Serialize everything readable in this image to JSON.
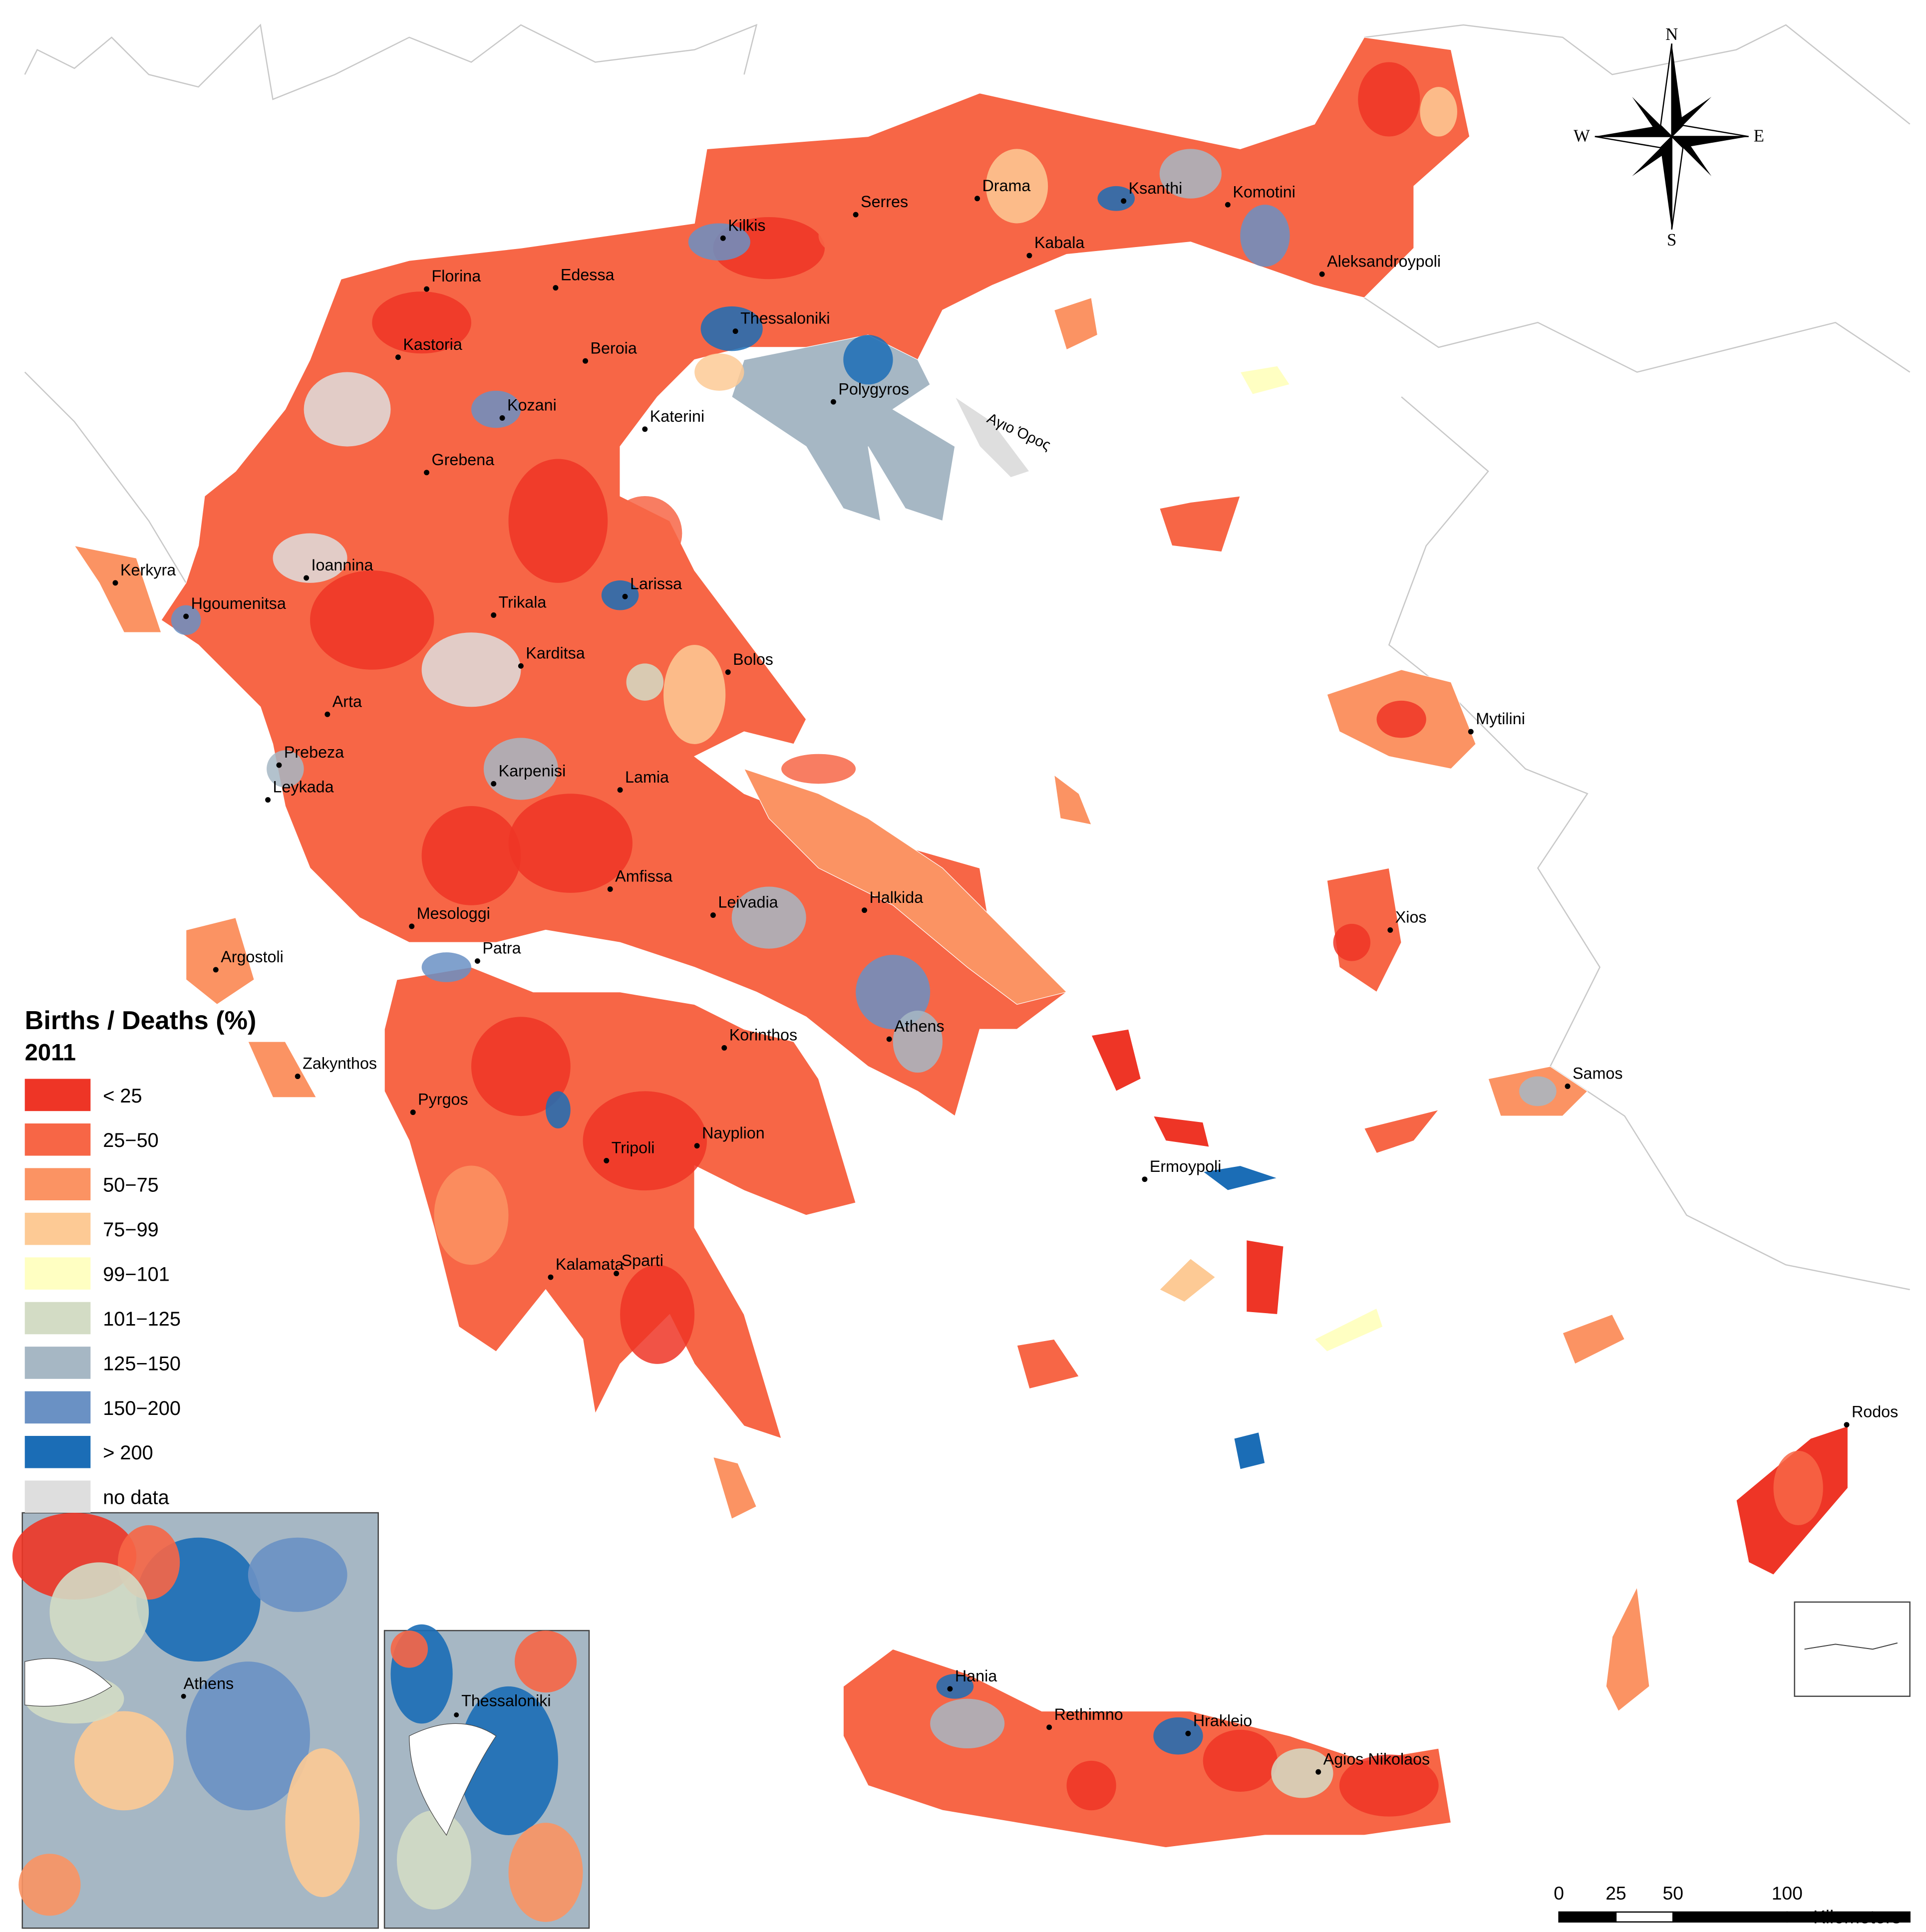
{
  "legend": {
    "title": "Births / Deaths (%)",
    "subtitle": "2011",
    "items": [
      {
        "label": "< 25",
        "color": "#ee3526"
      },
      {
        "label": "25−50",
        "color": "#f76646"
      },
      {
        "label": "50−75",
        "color": "#fb9363"
      },
      {
        "label": "75−99",
        "color": "#fdca95"
      },
      {
        "label": "99−101",
        "color": "#ffffc2"
      },
      {
        "label": "101−125",
        "color": "#d3dcc5"
      },
      {
        "label": "125−150",
        "color": "#a6b7c4"
      },
      {
        "label": "150−200",
        "color": "#6a91c4"
      },
      {
        "label": "> 200",
        "color": "#1b6db6"
      },
      {
        "label": "no data",
        "color": "#dedede"
      }
    ]
  },
  "cities": [
    "Kerkyra",
    "Hgoumenitsa",
    "Ioannina",
    "Florina",
    "Edessa",
    "Kastoria",
    "Beroia",
    "Kilkis",
    "Serres",
    "Drama",
    "Kabala",
    "Ksanthi",
    "Komotini",
    "Aleksandroypoli",
    "Thessaloniki",
    "Polygyros",
    "Katerini",
    "Kozani",
    "Grebena",
    "Trikala",
    "Larissa",
    "Karditsa",
    "Bolos",
    "Arta",
    "Prebeza",
    "Leykada",
    "Karpenisi",
    "Lamia",
    "Amfissa",
    "Leivadia",
    "Halkida",
    "Mesologgi",
    "Argostoli",
    "Patra",
    "Korinthos",
    "Athens",
    "Zakynthos",
    "Pyrgos",
    "Tripoli",
    "Nayplion",
    "Kalamata",
    "Sparti",
    "Ermoypoli",
    "Mytilini",
    "Xios",
    "Samos",
    "Rodos",
    "Hania",
    "Rethimno",
    "Hrakleio",
    "Agios Nikolaos"
  ],
  "region_label": "Αγιο Όρος",
  "compass": {
    "north": "N",
    "east": "E",
    "south": "S",
    "west": "W"
  },
  "insets": {
    "athens": "Athens",
    "thessaloniki": "Thessaloniki"
  },
  "scale": {
    "ticks": [
      0,
      25,
      50,
      100
    ],
    "unit": "Kilometers"
  }
}
